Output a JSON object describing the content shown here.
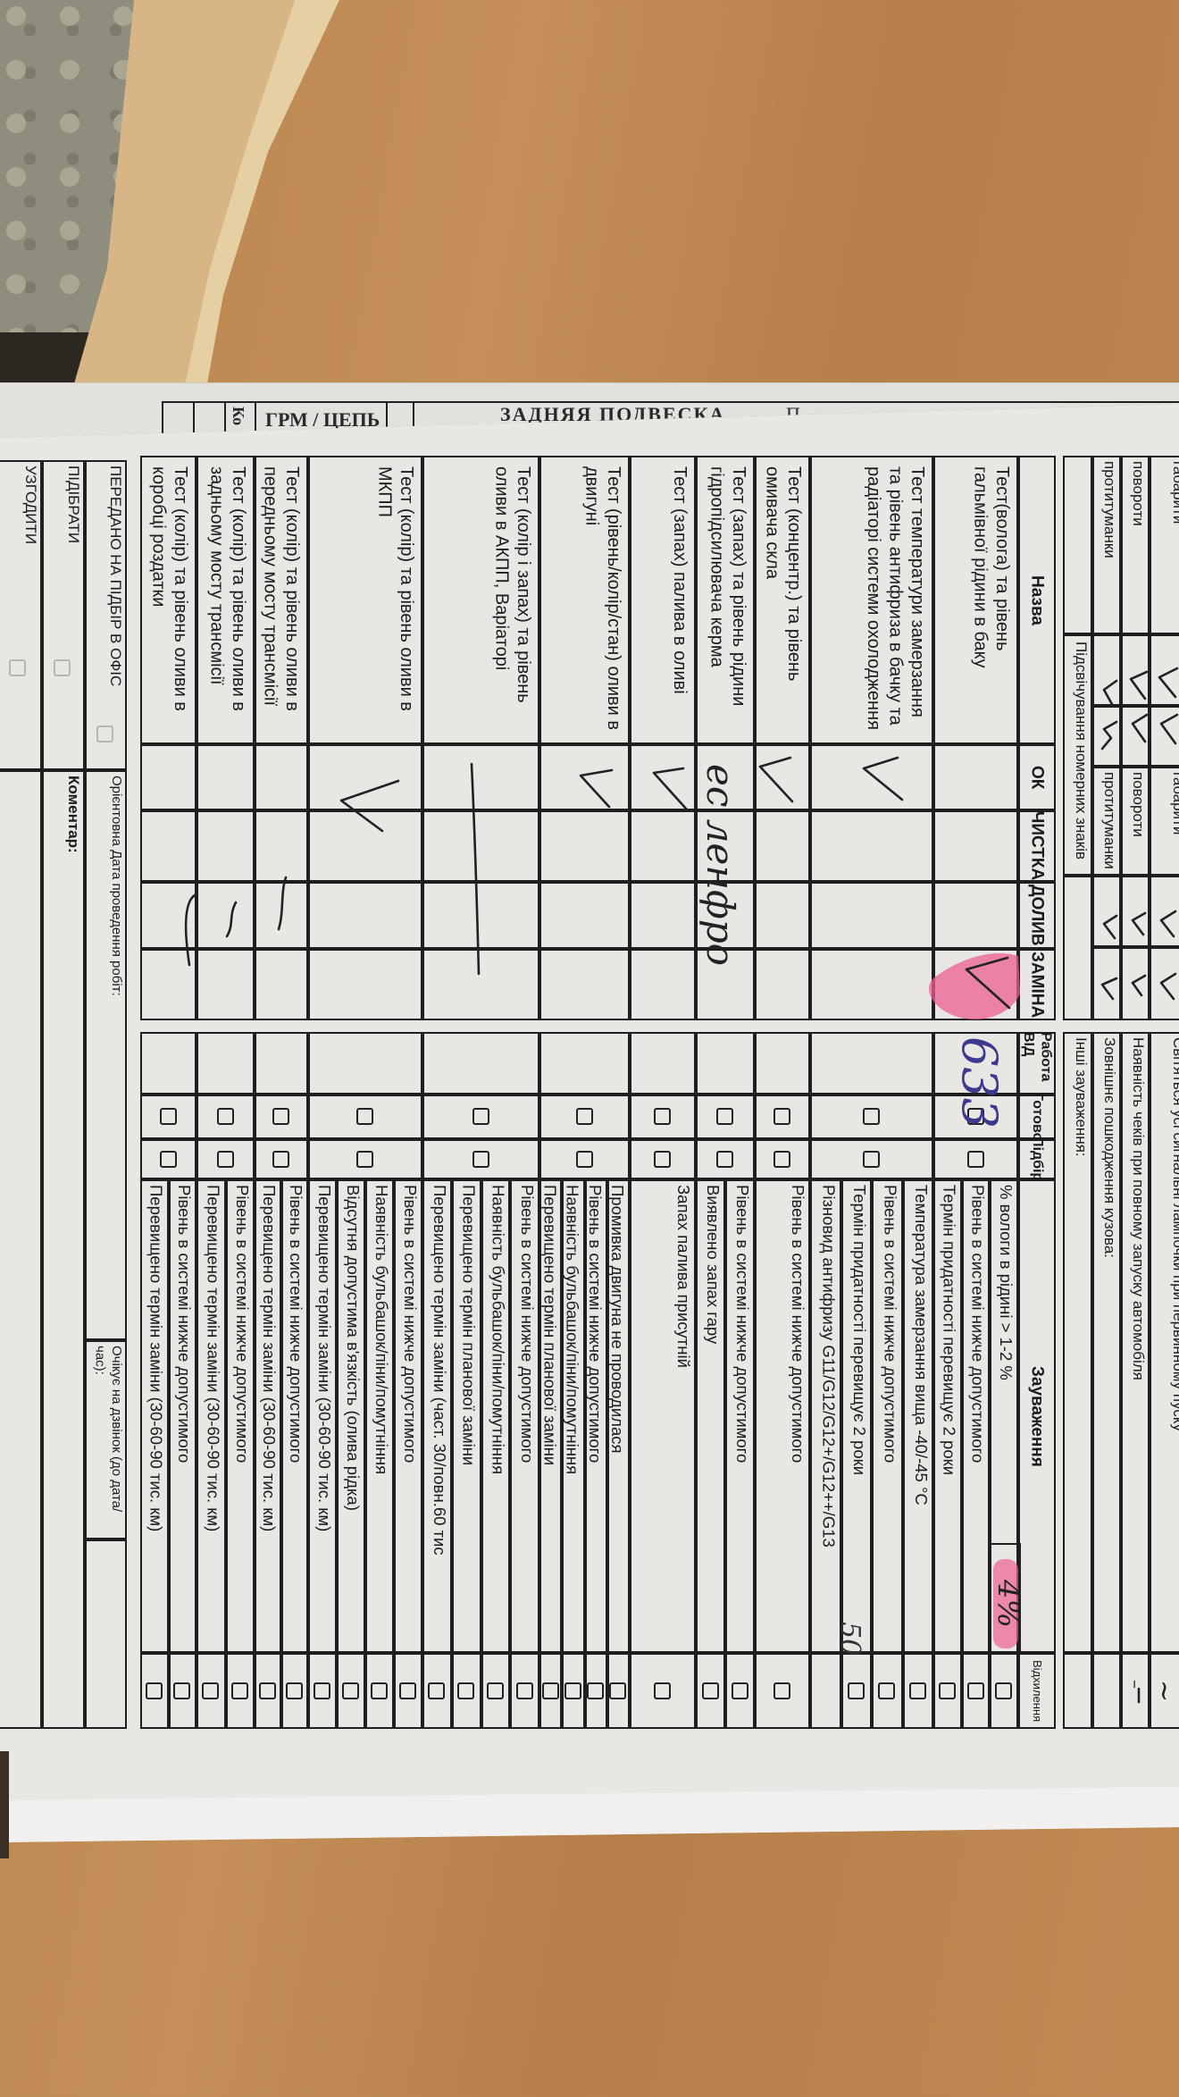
{
  "underlying_sheet": {
    "labels": [
      "Ко",
      "ГРМ / ЦЕПЬ",
      "ЗАДНЯЯ ПОДВЕСКА",
      "П"
    ]
  },
  "header_block": {
    "left_labels": [
      "габарити",
      "повороти",
      "протитуманки"
    ],
    "right_labels": [
      "габарити",
      "повороти",
      "протитуманки"
    ],
    "plate_light_label": "Підсвічування номерних знаків",
    "remarks": [
      "Світяться усі сигнальні лампочки при первинному пуску",
      "Наявність чеків при повному запуску автомобіля",
      "Зовнішнє пошкодження кузова:",
      "Інші зауваження:"
    ],
    "remark_marks": [
      "~",
      "–"
    ]
  },
  "table": {
    "headers": {
      "name": "Назва",
      "ok": "ОК",
      "clean": "ЧИСТКА",
      "topup": "ДОЛИВ",
      "replace": "ЗАМІНА",
      "work": "Работа ВІД",
      "done": "Готово",
      "pick": "Підбір",
      "notes": "Зауваження",
      "deviation": "Відхилення"
    },
    "rows": [
      {
        "name": "Тест(волога) та рівень гальмівної рідини в баку",
        "notes": [
          "% вологи в рідині  > 1-2 %",
          "Рівень в системі нижче допустимого",
          "Термін придатності перевищує 2 роки"
        ]
      },
      {
        "name": "Тест температури замерзання та рівень антифриза в  бачку та радіаторі системи охолодження",
        "notes": [
          "Температура замерзання вища -40/-45 °C",
          "Рівень в системі нижче допустимого",
          "Термін придатності перевищує 2 роки",
          "Різновид антифризу G11/G12/G12+/G12++/G13"
        ]
      },
      {
        "name": "Тест (концентр.) та рівень омивача скла",
        "notes": [
          "Рівень в системі нижче допустимого"
        ]
      },
      {
        "name": "Тест (запах) та рівень рідини гідропідсилювача керма",
        "notes": [
          "Рівень в системі нижче допустимого",
          "Виявлено запах гару"
        ]
      },
      {
        "name": "Тест (запах) палива в оливі",
        "notes": [
          "Запах палива присутній"
        ]
      },
      {
        "name": "Тест  (рівень/колір/стан) оливи в двигуні",
        "notes": [
          "Промивка двигуна не проводилася",
          "Рівень в системі нижче допустимого",
          "Наявність бульбашок/піни/помутніння",
          "Перевищено термін планової заміни"
        ]
      },
      {
        "name": "Тест (колір і запах) та рівень оливи в АКПП, Варіаторі",
        "notes": [
          "Рівень в системі нижче допустимого",
          "Наявність бульбашок/піни/помутніння",
          "Перевищено термін планової заміни",
          "Перевищено термін заміни (част. 30/повн.60 тис"
        ]
      },
      {
        "name": "Тест (колір) та рівень оливи в МКПП",
        "notes": [
          "Рівень в системі нижче допустимого",
          "Наявність бульбашок/піни/помутніння",
          "Відсутня допустима в'язкість (олива рідка)",
          "Перевищено термін заміни (30-60-90 тис. км)"
        ]
      },
      {
        "name": "Тест (колір) та рівень оливи в передньому мосту трансмісії",
        "notes": [
          "Рівень в системі нижче допустимого",
          "Перевищено термін заміни (30-60-90 тис. км)"
        ]
      },
      {
        "name": "Тест (колір) та рівень оливи в задньому мосту трансмісії",
        "notes": [
          "Рівень в системі нижче допустимого",
          "Перевищено термін заміни (30-60-90 тис. км)"
        ]
      },
      {
        "name": "Тест (колір) та рівень оливи в коробці роздатки",
        "notes": [
          "Рівень в системі нижче допустимого",
          "Перевищено термін заміни (30-60-90 тис. км)"
        ]
      }
    ]
  },
  "footer": {
    "sent_to_office": "ПЕРЕДАНО НА ПІДБІР В ОФІС",
    "pick_up": "ПІДІБРАТИ",
    "agree": "УЗГОДИТИ",
    "estimated_date": "Орієнтовна Дата проведення робіт:",
    "awaiting_call": "Очікує на дзвінок (до дата/час):",
    "comment": "Коментар:"
  },
  "handwriting": {
    "work_order": "633",
    "moisture": "4%",
    "freeze_temp": "50",
    "note": "ес ленфро"
  },
  "colors": {
    "paper": "#e9e7e4",
    "ink_lines": "#1f1f1f",
    "pen_blue": "#3b3a8f",
    "highlighter_pink": "#ec5f93",
    "desk_wood": "#bd8752"
  }
}
